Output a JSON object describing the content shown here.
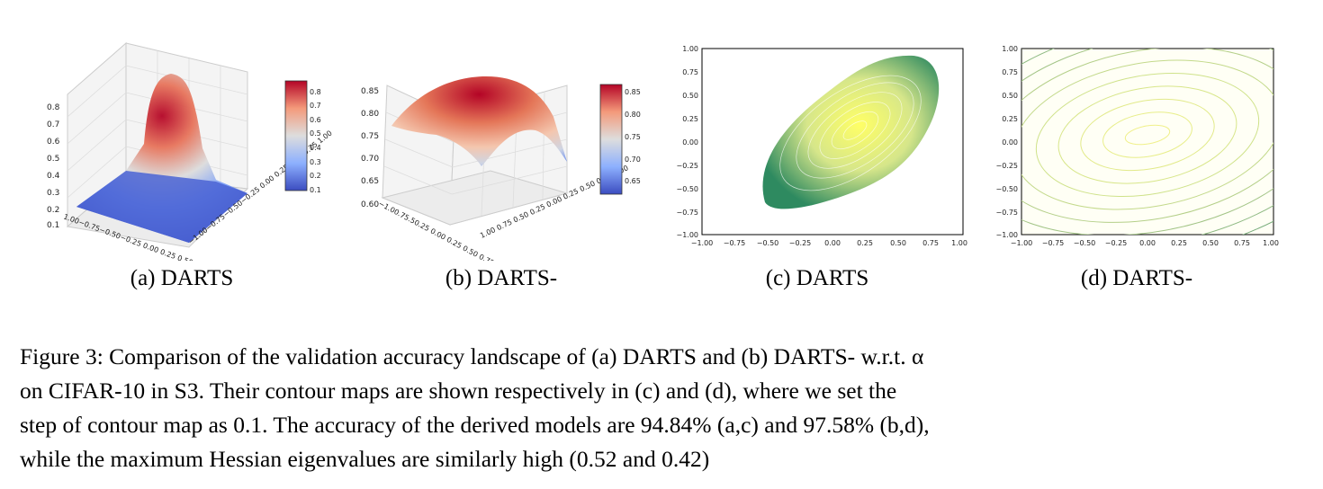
{
  "figure": {
    "panels": [
      {
        "id": "a",
        "caption": "(a) DARTS"
      },
      {
        "id": "b",
        "caption": "(b) DARTS-"
      },
      {
        "id": "c",
        "caption": "(c) DARTS"
      },
      {
        "id": "d",
        "caption": "(d) DARTS-"
      }
    ],
    "caption_lines": [
      "Figure 3: Comparison of the validation accuracy landscape of (a) DARTS and (b) DARTS- w.r.t. α",
      "on CIFAR-10 in S3.  Their contour maps are shown respectively in (c) and (d), where we set the",
      "step of contour map as 0.1. The accuracy of the derived models are 94.84% (a,c) and 97.58% (b,d),",
      "while the maximum Hessian eigenvalues are similarly high (0.52 and 0.42)"
    ]
  },
  "chart_data": [
    {
      "type": "surface3d",
      "panel": "a",
      "z_ticks": [
        "0.1",
        "0.2",
        "0.3",
        "0.4",
        "0.5",
        "0.6",
        "0.7",
        "0.8"
      ],
      "x_ticks": [
        "1.00",
        "0.75",
        "0.50",
        "0.25",
        "0.00",
        "0.25",
        "0.50",
        "0.75",
        "1.00"
      ],
      "y_ticks": [
        "1.00",
        "0.75",
        "0.50",
        "0.25",
        "0.00",
        "0.25",
        "0.50",
        "0.75",
        "1.00"
      ],
      "colorbar_ticks": [
        "0.8",
        "0.7",
        "0.6",
        "0.5",
        "0.4",
        "0.3",
        "0.2",
        "0.1"
      ],
      "colorbar_range": [
        0.08,
        0.86
      ],
      "colormap": "coolwarm"
    },
    {
      "type": "surface3d",
      "panel": "b",
      "z_ticks": [
        "0.85",
        "0.80",
        "0.75",
        "0.70",
        "0.65",
        "0.60"
      ],
      "x_ticks": [
        "1.00",
        "0.75",
        "0.50",
        "0.25",
        "0.00",
        "0.25",
        "0.50",
        "0.75"
      ],
      "y_ticks": [
        "1.00",
        "0.75",
        "0.50",
        "0.25",
        "0.00",
        "0.25",
        "0.50",
        "0.75",
        "1.00"
      ],
      "colorbar_ticks": [
        "0.85",
        "0.80",
        "0.75",
        "0.70",
        "0.65"
      ],
      "colorbar_range": [
        0.62,
        0.87
      ],
      "colormap": "coolwarm"
    },
    {
      "type": "contour",
      "panel": "c",
      "xlim": [
        -1,
        1
      ],
      "ylim": [
        -1,
        1
      ],
      "x_ticks": [
        "−1.00",
        "−0.75",
        "−0.50",
        "−0.25",
        "0.00",
        "0.25",
        "0.50",
        "0.75",
        "1.00"
      ],
      "y_ticks": [
        "1.00",
        "0.75",
        "0.50",
        "0.25",
        "0.00",
        "−0.25",
        "−0.50",
        "−0.75",
        "−1.00"
      ],
      "colormap": "summer"
    },
    {
      "type": "contour",
      "panel": "d",
      "xlim": [
        -1,
        1
      ],
      "ylim": [
        -1,
        1
      ],
      "x_ticks": [
        "−1.00",
        "−0.75",
        "−0.50",
        "−0.25",
        "0.00",
        "0.25",
        "0.50",
        "0.75",
        "1.00"
      ],
      "y_ticks": [
        "1.00",
        "0.75",
        "0.50",
        "0.25",
        "0.00",
        "−0.25",
        "−0.50",
        "−0.75",
        "−1.00"
      ],
      "colormap": "summer"
    }
  ]
}
